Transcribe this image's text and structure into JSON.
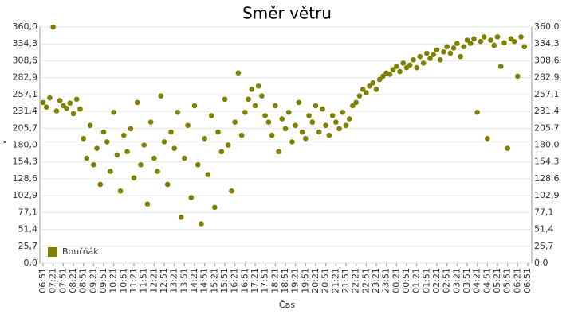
{
  "chart_data": {
    "type": "scatter",
    "title": "Směr větru",
    "x_label": "Čas",
    "y_label": "°",
    "grid": true,
    "legend": "bottom-left",
    "ylim": [
      0,
      360
    ],
    "yticks": [
      {
        "value": 0,
        "label": "0,0"
      },
      {
        "value": 25.7,
        "label": "25,7"
      },
      {
        "value": 51.4,
        "label": "51,4"
      },
      {
        "value": 77.1,
        "label": "77,1"
      },
      {
        "value": 102.9,
        "label": "102,9"
      },
      {
        "value": 128.6,
        "label": "128,6"
      },
      {
        "value": 154.3,
        "label": "154,3"
      },
      {
        "value": 180,
        "label": "180,0"
      },
      {
        "value": 205.7,
        "label": "205,7"
      },
      {
        "value": 231.4,
        "label": "231,4"
      },
      {
        "value": 257.1,
        "label": "257,1"
      },
      {
        "value": 282.9,
        "label": "282,9"
      },
      {
        "value": 308.6,
        "label": "308,6"
      },
      {
        "value": 334.3,
        "label": "334,3"
      },
      {
        "value": 360,
        "label": "360,0"
      }
    ],
    "xticks": [
      "06:51",
      "07:21",
      "07:51",
      "08:21",
      "08:51",
      "09:21",
      "09:51",
      "10:21",
      "10:51",
      "11:21",
      "11:51",
      "12:21",
      "12:51",
      "13:21",
      "13:51",
      "14:21",
      "14:51",
      "15:21",
      "15:51",
      "16:21",
      "16:51",
      "17:21",
      "17:51",
      "18:21",
      "18:51",
      "19:21",
      "19:51",
      "20:21",
      "20:51",
      "21:21",
      "21:51",
      "22:21",
      "22:51",
      "23:21",
      "23:51",
      "00:21",
      "00:51",
      "01:21",
      "01:51",
      "02:21",
      "02:51",
      "03:21",
      "03:51",
      "04:21",
      "04:51",
      "05:21",
      "05:51",
      "06:21",
      "06:51"
    ],
    "x": [
      "06:51",
      "07:01",
      "07:11",
      "07:21",
      "07:31",
      "07:41",
      "07:51",
      "08:01",
      "08:11",
      "08:21",
      "08:31",
      "08:41",
      "08:51",
      "09:01",
      "09:11",
      "09:21",
      "09:31",
      "09:41",
      "09:51",
      "10:01",
      "10:11",
      "10:21",
      "10:31",
      "10:41",
      "10:51",
      "11:01",
      "11:11",
      "11:21",
      "11:31",
      "11:41",
      "11:51",
      "12:01",
      "12:11",
      "12:21",
      "12:31",
      "12:41",
      "12:51",
      "13:01",
      "13:11",
      "13:21",
      "13:31",
      "13:41",
      "13:51",
      "14:01",
      "14:11",
      "14:21",
      "14:31",
      "14:41",
      "14:51",
      "15:01",
      "15:11",
      "15:21",
      "15:31",
      "15:41",
      "15:51",
      "16:01",
      "16:11",
      "16:21",
      "16:31",
      "16:41",
      "16:51",
      "17:01",
      "17:11",
      "17:21",
      "17:31",
      "17:41",
      "17:51",
      "18:01",
      "18:11",
      "18:21",
      "18:31",
      "18:41",
      "18:51",
      "19:01",
      "19:11",
      "19:21",
      "19:31",
      "19:41",
      "19:51",
      "20:01",
      "20:11",
      "20:21",
      "20:31",
      "20:41",
      "20:51",
      "21:01",
      "21:11",
      "21:21",
      "21:31",
      "21:41",
      "21:51",
      "22:01",
      "22:11",
      "22:21",
      "22:31",
      "22:41",
      "22:51",
      "23:01",
      "23:11",
      "23:21",
      "23:31",
      "23:41",
      "23:51",
      "00:01",
      "00:11",
      "00:21",
      "00:31",
      "00:41",
      "00:51",
      "01:01",
      "01:11",
      "01:21",
      "01:31",
      "01:41",
      "01:51",
      "02:01",
      "02:11",
      "02:21",
      "02:31",
      "02:41",
      "02:51",
      "03:01",
      "03:11",
      "03:21",
      "03:31",
      "03:41",
      "03:51",
      "04:01",
      "04:11",
      "04:21",
      "04:31",
      "04:41",
      "04:51",
      "05:01",
      "05:11",
      "05:21",
      "05:31",
      "05:41",
      "05:51",
      "06:01",
      "06:11",
      "06:21",
      "06:31",
      "06:41"
    ],
    "series": [
      {
        "name": "Bouřňák",
        "color": "#808000",
        "values": [
          245,
          238,
          252,
          360,
          232,
          248,
          240,
          236,
          244,
          228,
          250,
          235,
          190,
          160,
          210,
          150,
          175,
          120,
          200,
          185,
          140,
          230,
          165,
          110,
          195,
          170,
          205,
          130,
          245,
          150,
          180,
          90,
          215,
          160,
          140,
          255,
          185,
          120,
          200,
          175,
          230,
          70,
          160,
          210,
          100,
          240,
          150,
          60,
          190,
          135,
          225,
          85,
          200,
          170,
          250,
          180,
          110,
          215,
          290,
          195,
          230,
          250,
          265,
          240,
          270,
          255,
          225,
          215,
          195,
          240,
          170,
          220,
          205,
          230,
          185,
          210,
          245,
          200,
          190,
          225,
          215,
          240,
          200,
          235,
          210,
          195,
          225,
          215,
          205,
          230,
          210,
          220,
          240,
          245,
          255,
          265,
          260,
          270,
          275,
          265,
          280,
          285,
          290,
          288,
          295,
          300,
          292,
          305,
          298,
          302,
          310,
          298,
          315,
          305,
          320,
          312,
          318,
          325,
          310,
          322,
          330,
          320,
          328,
          335,
          315,
          330,
          340,
          335,
          342,
          230,
          338,
          345,
          190,
          340,
          332,
          345,
          300,
          336,
          175,
          342,
          338,
          285,
          345,
          330
        ]
      }
    ]
  }
}
